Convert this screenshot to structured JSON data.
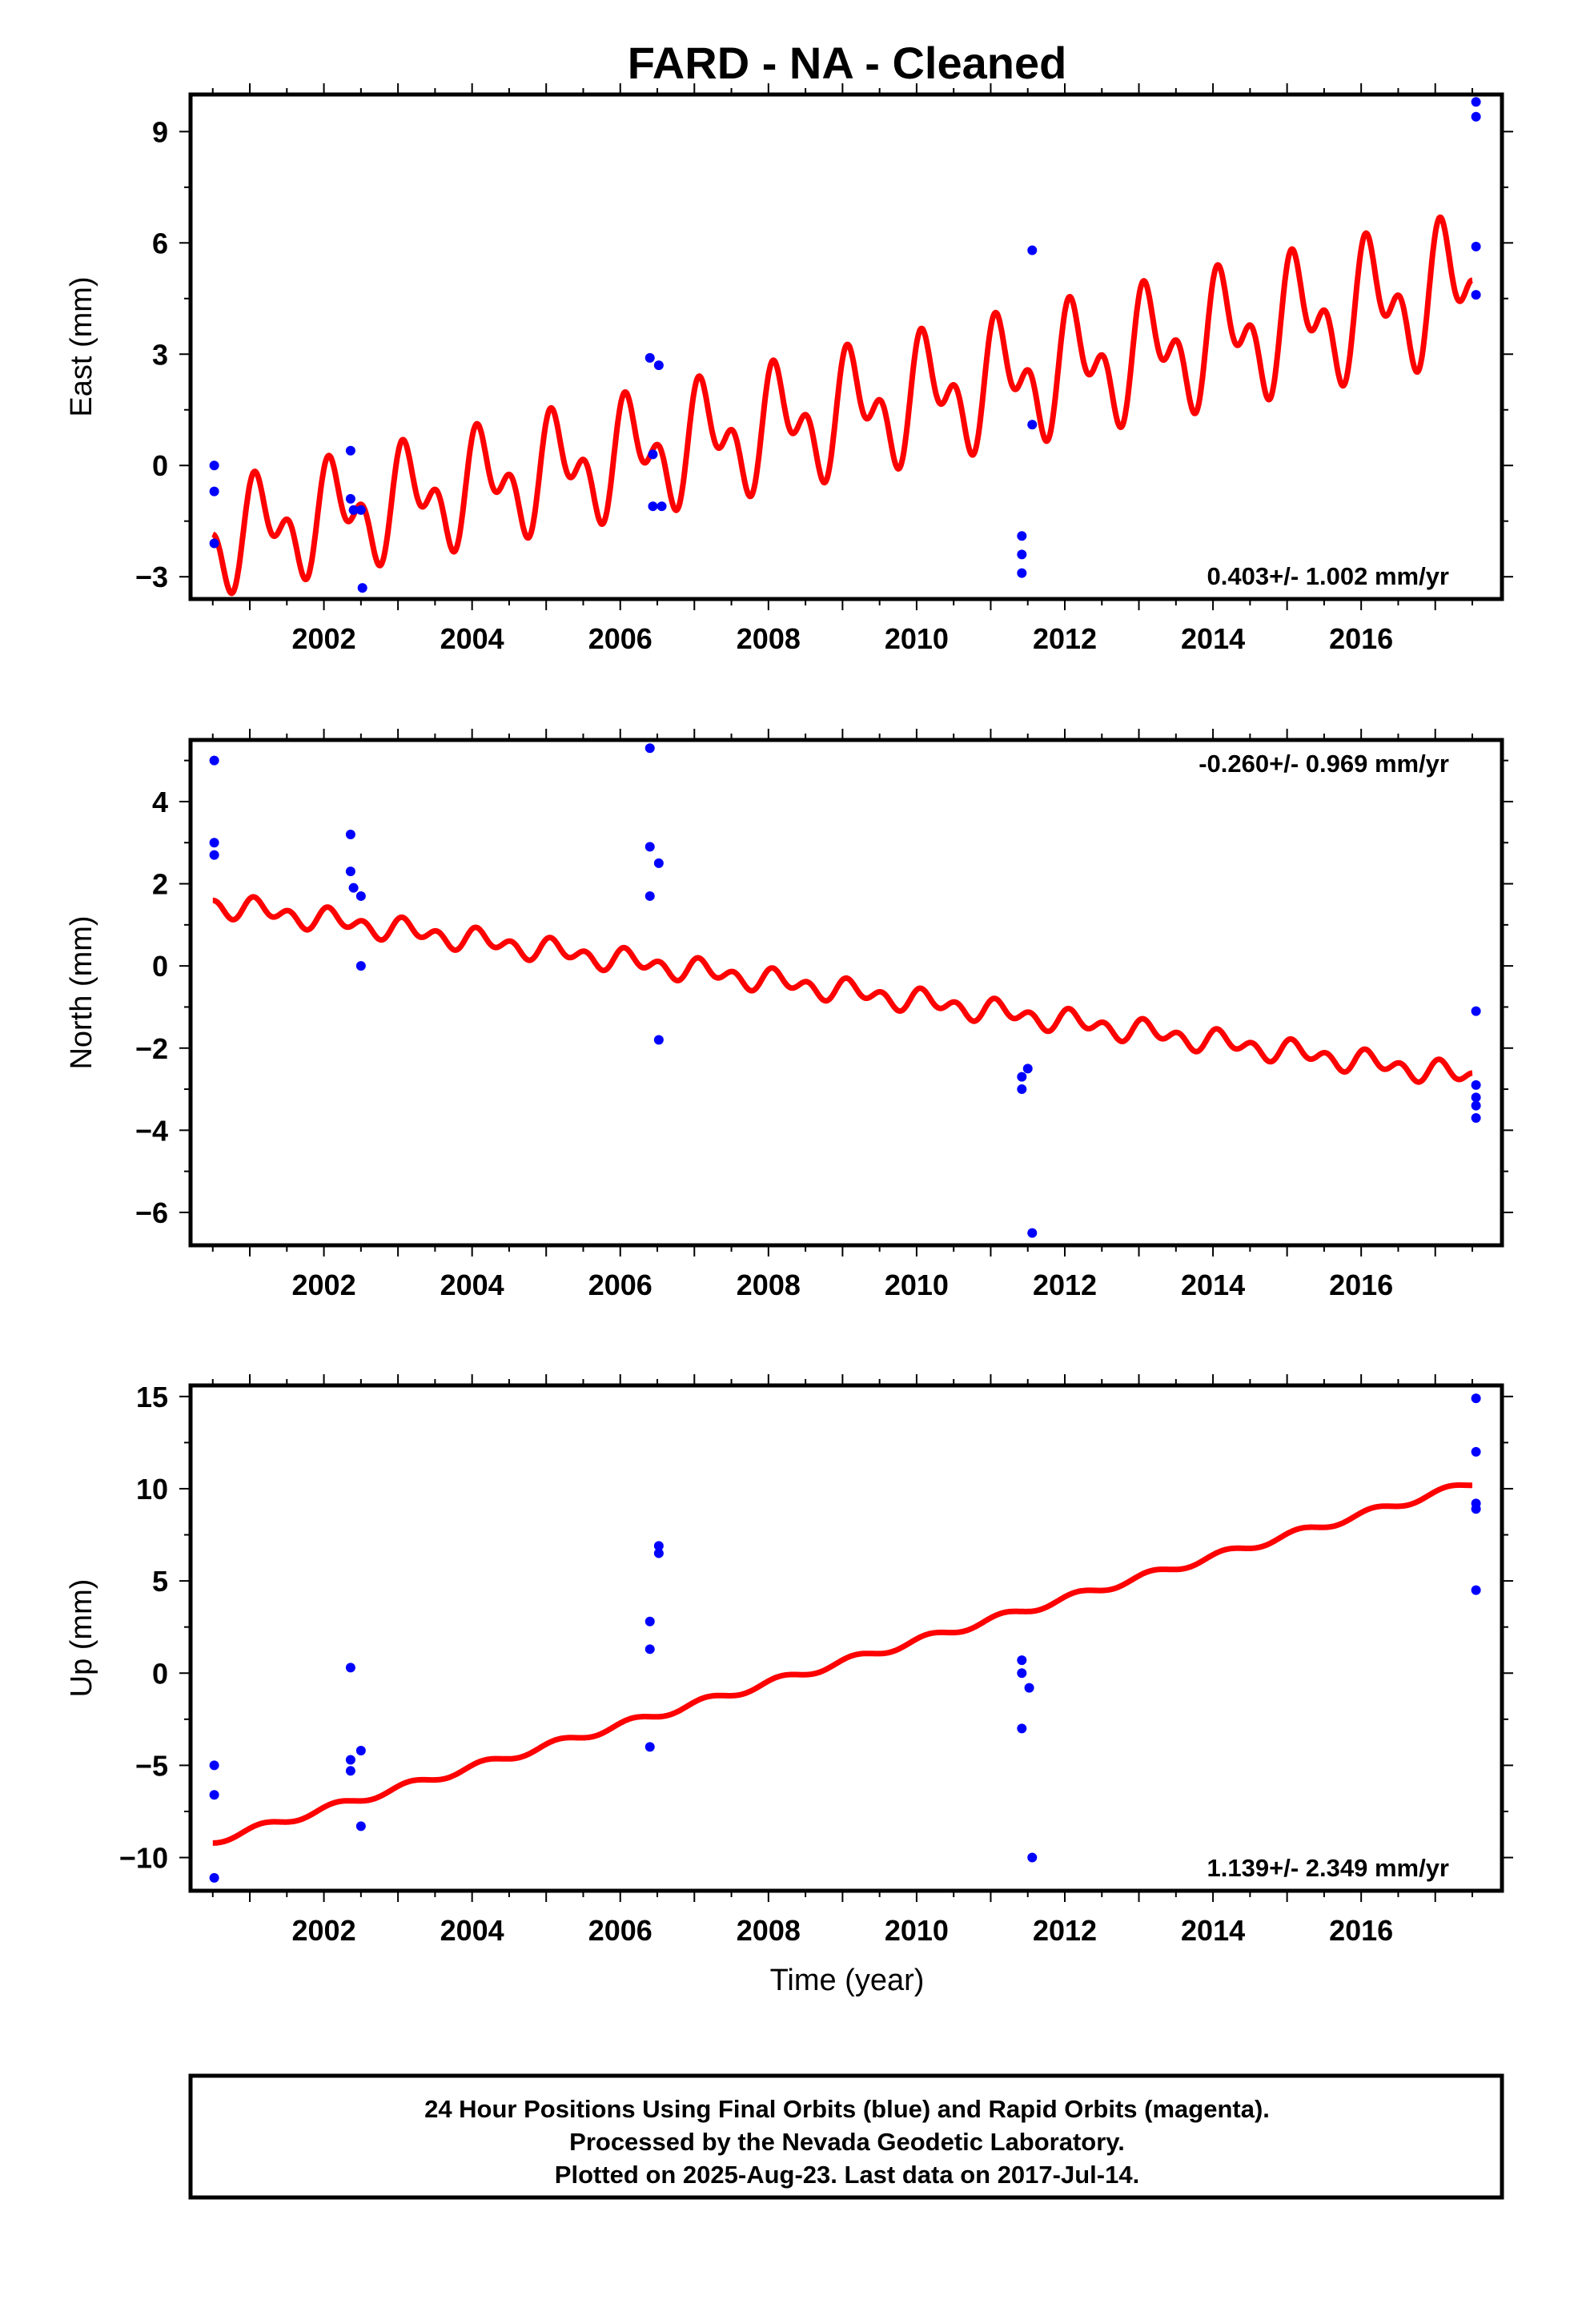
{
  "title": "FARD  - NA - Cleaned",
  "xlabel": "Time (year)",
  "colors": {
    "model": "#ff0000",
    "final_orbits": "#0000ff",
    "frame": "#000000"
  },
  "chart_data": [
    {
      "type": "scatter",
      "component": "east",
      "ylabel": "East (mm)",
      "ylim": [
        -3.6,
        10.0
      ],
      "yticks": [
        -3,
        0,
        3,
        6,
        9
      ],
      "xlim": [
        2000.2,
        2017.9
      ],
      "xticks": [
        2002,
        2004,
        2006,
        2008,
        2010,
        2012,
        2014,
        2016
      ],
      "rate_label": "0.403+/- 1.002 mm/yr",
      "rate_position": "bottom-right",
      "model": {
        "name": "",
        "start": 2000.5,
        "end": 2017.5,
        "y_start": -2.0,
        "y_end": 4.8,
        "annual_amplitude": 1.0,
        "semiannual_amplitude": 0.8,
        "amplitude_growth": 0.3
      },
      "points": [
        [
          2000.52,
          0.0
        ],
        [
          2000.52,
          -0.7
        ],
        [
          2000.52,
          -2.1
        ],
        [
          2002.36,
          0.4
        ],
        [
          2002.36,
          -0.9
        ],
        [
          2002.4,
          -1.2
        ],
        [
          2002.5,
          -1.2
        ],
        [
          2002.52,
          -3.3
        ],
        [
          2006.4,
          2.9
        ],
        [
          2006.52,
          2.7
        ],
        [
          2006.44,
          0.3
        ],
        [
          2006.44,
          -1.1
        ],
        [
          2006.56,
          -1.1
        ],
        [
          2011.42,
          -1.9
        ],
        [
          2011.42,
          -2.4
        ],
        [
          2011.42,
          -2.9
        ],
        [
          2011.56,
          5.8
        ],
        [
          2011.56,
          1.1
        ],
        [
          2017.55,
          9.8
        ],
        [
          2017.55,
          9.4
        ],
        [
          2017.55,
          5.9
        ],
        [
          2017.55,
          4.6
        ]
      ]
    },
    {
      "type": "scatter",
      "component": "north",
      "ylabel": "North (mm)",
      "ylim": [
        -6.8,
        5.5
      ],
      "yticks": [
        -6,
        -4,
        -2,
        0,
        2,
        4
      ],
      "xlim": [
        2000.2,
        2017.9
      ],
      "xticks": [
        2002,
        2004,
        2006,
        2008,
        2010,
        2012,
        2014,
        2016
      ],
      "rate_label": "-0.260+/- 0.969 mm/yr",
      "rate_position": "top-right",
      "model": {
        "name": "",
        "start": 2000.5,
        "end": 2017.5,
        "y_start": 1.5,
        "y_end": -2.7,
        "annual_amplitude": 0.15,
        "semiannual_amplitude": 0.2,
        "amplitude_growth": 0.0
      },
      "points": [
        [
          2000.52,
          5.0
        ],
        [
          2000.52,
          3.0
        ],
        [
          2000.52,
          2.7
        ],
        [
          2002.36,
          3.2
        ],
        [
          2002.36,
          2.3
        ],
        [
          2002.4,
          1.9
        ],
        [
          2002.5,
          1.7
        ],
        [
          2002.5,
          0.0
        ],
        [
          2006.4,
          5.3
        ],
        [
          2006.4,
          2.9
        ],
        [
          2006.52,
          2.5
        ],
        [
          2006.4,
          1.7
        ],
        [
          2006.52,
          -1.8
        ],
        [
          2011.42,
          -2.7
        ],
        [
          2011.42,
          -3.0
        ],
        [
          2011.5,
          -2.5
        ],
        [
          2011.56,
          -6.5
        ],
        [
          2017.55,
          -1.1
        ],
        [
          2017.55,
          -2.9
        ],
        [
          2017.55,
          -3.2
        ],
        [
          2017.55,
          -3.4
        ],
        [
          2017.55,
          -3.7
        ]
      ]
    },
    {
      "type": "scatter",
      "component": "up",
      "ylabel": "Up (mm)",
      "ylim": [
        -11.8,
        15.6
      ],
      "yticks": [
        -10,
        -5,
        0,
        5,
        10,
        15
      ],
      "xlim": [
        2000.2,
        2017.9
      ],
      "xticks": [
        2002,
        2004,
        2006,
        2008,
        2010,
        2012,
        2014,
        2016
      ],
      "rate_label": "1.139+/- 2.349 mm/yr",
      "rate_position": "bottom-right",
      "model": {
        "name": "",
        "start": 2000.5,
        "end": 2017.5,
        "y_start": -9.1,
        "y_end": 10.3,
        "annual_amplitude": 0.2,
        "semiannual_amplitude": 0.0,
        "amplitude_growth": 0.0
      },
      "points": [
        [
          2000.52,
          -5.0
        ],
        [
          2000.52,
          -6.6
        ],
        [
          2000.52,
          -11.1
        ],
        [
          2002.36,
          0.3
        ],
        [
          2002.36,
          -4.7
        ],
        [
          2002.36,
          -5.3
        ],
        [
          2002.5,
          -4.2
        ],
        [
          2002.5,
          -8.3
        ],
        [
          2006.4,
          2.8
        ],
        [
          2006.4,
          1.3
        ],
        [
          2006.4,
          -4.0
        ],
        [
          2006.52,
          6.9
        ],
        [
          2006.52,
          6.5
        ],
        [
          2011.42,
          0.7
        ],
        [
          2011.42,
          0.0
        ],
        [
          2011.42,
          -3.0
        ],
        [
          2011.52,
          -0.8
        ],
        [
          2011.56,
          -10.0
        ],
        [
          2017.55,
          14.9
        ],
        [
          2017.55,
          12.0
        ],
        [
          2017.55,
          9.2
        ],
        [
          2017.55,
          8.9
        ],
        [
          2017.55,
          4.5
        ]
      ]
    }
  ],
  "footer": {
    "line1": "24 Hour Positions Using Final Orbits (blue) and Rapid Orbits (magenta).",
    "line2": "Processed by the Nevada Geodetic Laboratory.",
    "line3": "Plotted on 2025-Aug-23. Last data on 2017-Jul-14."
  }
}
